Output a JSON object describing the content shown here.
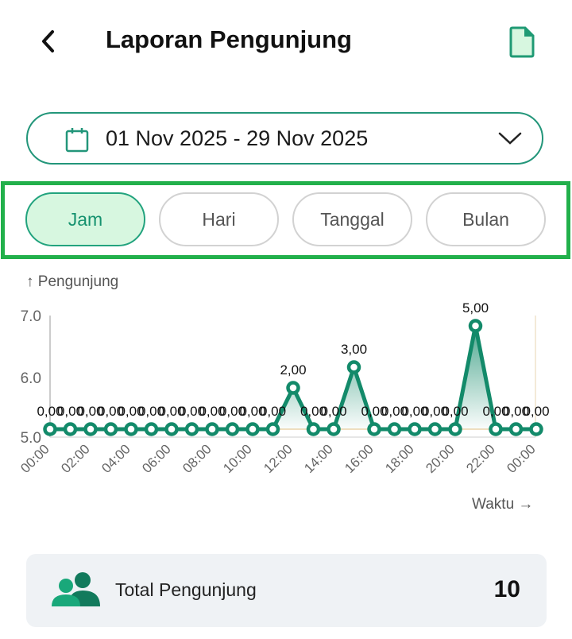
{
  "header": {
    "title": "Laporan Pengunjung",
    "back_icon": "chevron-left-icon",
    "export_icon": "document-icon"
  },
  "date_filter": {
    "value": "01 Nov 2025 - 29 Nov 2025",
    "icon": "calendar-icon"
  },
  "period_tabs": [
    {
      "label": "Jam",
      "active": true
    },
    {
      "label": "Hari",
      "active": false
    },
    {
      "label": "Tanggal",
      "active": false
    },
    {
      "label": "Bulan",
      "active": false
    }
  ],
  "colors": {
    "accent": "#138a6a",
    "highlight": "#22b04b",
    "active_tab_bg": "#d7f7e0"
  },
  "chart_data": {
    "type": "line",
    "ylabel": "Pengunjung",
    "xlabel": "Waktu",
    "y_ticks": [
      "5.0",
      "6.0",
      "7.0"
    ],
    "ylim": [
      5.0,
      7.0
    ],
    "x_tick_labels": [
      "00:00",
      "02:00",
      "04:00",
      "06:00",
      "08:00",
      "10:00",
      "12:00",
      "14:00",
      "16:00",
      "18:00",
      "20:00",
      "22:00",
      "00:00"
    ],
    "x": [
      "00:00",
      "01:00",
      "02:00",
      "03:00",
      "04:00",
      "05:00",
      "06:00",
      "07:00",
      "08:00",
      "09:00",
      "10:00",
      "11:00",
      "12:00",
      "13:00",
      "14:00",
      "15:00",
      "16:00",
      "17:00",
      "18:00",
      "19:00",
      "20:00",
      "21:00",
      "22:00",
      "23:00",
      "00:00"
    ],
    "values": [
      0,
      0,
      0,
      0,
      0,
      0,
      0,
      0,
      0,
      0,
      0,
      0,
      2,
      0,
      0,
      3,
      0,
      0,
      0,
      0,
      0,
      5,
      0,
      0,
      0
    ],
    "data_labels": [
      "0,00",
      "0,00",
      "0,00",
      "0,00",
      "0,00",
      "0,00",
      "0,00",
      "0,00",
      "0,00",
      "0,00",
      "0,00",
      "0,00",
      "2,00",
      "0,00",
      "0,00",
      "3,00",
      "0,00",
      "0,00",
      "0,00",
      "0,00",
      "0,00",
      "5,00",
      "0,00",
      "0,00",
      "0,00"
    ],
    "grid": false
  },
  "summary": {
    "label": "Total Pengunjung",
    "value": "10",
    "icon": "people-icon"
  }
}
